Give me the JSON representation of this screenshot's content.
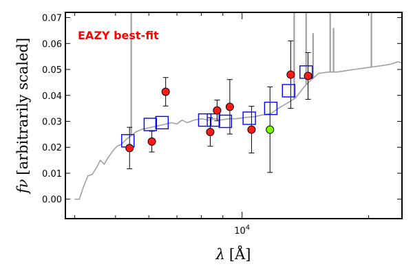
{
  "chart_data": {
    "type": "scatter",
    "title": "",
    "xlabel_symbol": "λ",
    "xlabel_unit": "[Å]",
    "ylabel_symbol": "fν",
    "ylabel_unit": "[arbitrarily scaled]",
    "x_scale": "log",
    "xlim": [
      3800,
      24000
    ],
    "ylim": [
      -0.0075,
      0.072
    ],
    "x_ticks": [
      {
        "value": 10000,
        "base": "10",
        "exponent": "4"
      }
    ],
    "y_ticks": [
      "0.00",
      "0.01",
      "0.02",
      "0.03",
      "0.04",
      "0.05",
      "0.06",
      "0.07"
    ],
    "grid": false,
    "annotation": {
      "text": "EAZY best-fit",
      "color": "#ff0000"
    },
    "colors": {
      "template": "#a0a0a0",
      "model_box": "#0000ff",
      "obs_point": "#ff1a1a",
      "highlight_point": "#7cfc00"
    },
    "template_spectrum": [
      [
        4000,
        0.0
      ],
      [
        4100,
        0.0
      ],
      [
        4200,
        0.005
      ],
      [
        4300,
        0.009
      ],
      [
        4400,
        0.0095
      ],
      [
        4500,
        0.012
      ],
      [
        4600,
        0.015
      ],
      [
        4700,
        0.0135
      ],
      [
        4800,
        0.016
      ],
      [
        4950,
        0.019
      ],
      [
        5050,
        0.0205
      ],
      [
        5150,
        0.021
      ],
      [
        5300,
        0.023
      ],
      [
        5450,
        0.0245
      ],
      [
        5600,
        0.026
      ],
      [
        5800,
        0.027
      ],
      [
        6000,
        0.0275
      ],
      [
        6200,
        0.028
      ],
      [
        6400,
        0.0285
      ],
      [
        6600,
        0.029
      ],
      [
        6800,
        0.0295
      ],
      [
        7000,
        0.029
      ],
      [
        7200,
        0.0305
      ],
      [
        7400,
        0.0295
      ],
      [
        7700,
        0.0305
      ],
      [
        8000,
        0.031
      ],
      [
        8300,
        0.0305
      ],
      [
        8600,
        0.031
      ],
      [
        8900,
        0.0305
      ],
      [
        9300,
        0.031
      ],
      [
        9700,
        0.031
      ],
      [
        10200,
        0.0315
      ],
      [
        10700,
        0.0318
      ],
      [
        11200,
        0.0325
      ],
      [
        11700,
        0.033
      ],
      [
        12200,
        0.035
      ],
      [
        12800,
        0.037
      ],
      [
        13400,
        0.039
      ],
      [
        14000,
        0.043
      ],
      [
        14600,
        0.046
      ],
      [
        15200,
        0.0485
      ],
      [
        16000,
        0.049
      ],
      [
        16800,
        0.049
      ],
      [
        17600,
        0.0495
      ],
      [
        18500,
        0.05
      ],
      [
        19500,
        0.0505
      ],
      [
        20500,
        0.051
      ],
      [
        21500,
        0.0515
      ],
      [
        22500,
        0.052
      ],
      [
        23500,
        0.053
      ],
      [
        24000,
        0.0525
      ]
    ],
    "emission_lines": [
      {
        "x": 5450,
        "peak": 0.072
      },
      {
        "x": 13300,
        "peak": 0.072
      },
      {
        "x": 14200,
        "peak": 0.072
      },
      {
        "x": 14750,
        "peak": 0.064
      },
      {
        "x": 16200,
        "peak": 0.072
      },
      {
        "x": 16500,
        "peak": 0.066
      },
      {
        "x": 20300,
        "peak": 0.072
      }
    ],
    "model_fluxes": [
      {
        "x": 5350,
        "y": 0.0225
      },
      {
        "x": 6050,
        "y": 0.0288
      },
      {
        "x": 6450,
        "y": 0.0295
      },
      {
        "x": 8150,
        "y": 0.0305
      },
      {
        "x": 8550,
        "y": 0.0305
      },
      {
        "x": 9120,
        "y": 0.03
      },
      {
        "x": 10400,
        "y": 0.0312
      },
      {
        "x": 11700,
        "y": 0.035
      },
      {
        "x": 12900,
        "y": 0.0418
      },
      {
        "x": 14200,
        "y": 0.049
      }
    ],
    "observed_fluxes": [
      {
        "x": 5400,
        "y": 0.0197,
        "err": 0.008,
        "flag": "normal"
      },
      {
        "x": 6100,
        "y": 0.0222,
        "err": 0.004,
        "flag": "normal"
      },
      {
        "x": 6580,
        "y": 0.0414,
        "err": 0.0055,
        "flag": "normal"
      },
      {
        "x": 8400,
        "y": 0.0259,
        "err": 0.0055,
        "flag": "normal"
      },
      {
        "x": 8720,
        "y": 0.0342,
        "err": 0.004,
        "flag": "normal"
      },
      {
        "x": 9350,
        "y": 0.0356,
        "err": 0.0105,
        "flag": "normal"
      },
      {
        "x": 10530,
        "y": 0.0268,
        "err": 0.009,
        "flag": "normal"
      },
      {
        "x": 11650,
        "y": 0.0268,
        "err": 0.0165,
        "flag": "highlight"
      },
      {
        "x": 13050,
        "y": 0.048,
        "err": 0.013,
        "flag": "normal"
      },
      {
        "x": 14350,
        "y": 0.0475,
        "err": 0.009,
        "flag": "normal"
      }
    ]
  }
}
